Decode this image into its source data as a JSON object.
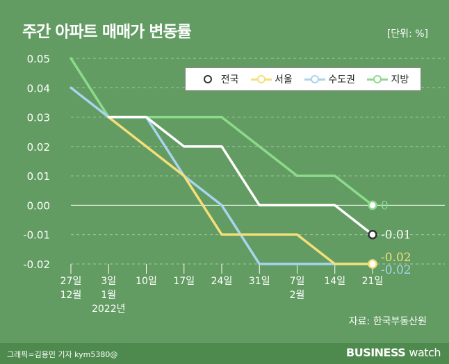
{
  "title": "주간 아파트 매매가 변동률",
  "unit": "[단위: %]",
  "source": "자료: 한국부동산원",
  "footer": {
    "credit": "그래픽=김용민 기자 kym5380@",
    "brand_bold": "BUSINESS",
    "brand_light": "watch"
  },
  "colors": {
    "background": "#629C62",
    "전국": "#FFFFFF",
    "서울": "#F5DF7A",
    "수도권": "#A8D4EE",
    "지방": "#8CDA8C"
  },
  "chart_data": {
    "type": "line",
    "title": "주간 아파트 매매가 변동률",
    "unit": "[단위: %]",
    "ylim": [
      -0.02,
      0.05
    ],
    "yticks": [
      "0.05",
      "0.04",
      "0.03",
      "0.02",
      "0.01",
      "0.00",
      "-0.01",
      "-0.02"
    ],
    "categories": [
      {
        "line1": "27일",
        "line2": "12월",
        "line3": ""
      },
      {
        "line1": "3일",
        "line2": "1월",
        "line3": "2022년"
      },
      {
        "line1": "10일",
        "line2": "",
        "line3": ""
      },
      {
        "line1": "17일",
        "line2": "",
        "line3": ""
      },
      {
        "line1": "24일",
        "line2": "",
        "line3": ""
      },
      {
        "line1": "31일",
        "line2": "",
        "line3": ""
      },
      {
        "line1": "7일",
        "line2": "2월",
        "line3": ""
      },
      {
        "line1": "14일",
        "line2": "",
        "line3": ""
      },
      {
        "line1": "21일",
        "line2": "",
        "line3": ""
      }
    ],
    "series": [
      {
        "name": "지방",
        "values": [
          0.05,
          0.03,
          0.03,
          0.03,
          0.03,
          0.02,
          0.01,
          0.01,
          0.0
        ],
        "end_label": "0"
      },
      {
        "name": "수도권",
        "values": [
          0.04,
          0.03,
          0.03,
          0.01,
          0.0,
          -0.02,
          -0.02,
          -0.02,
          -0.02
        ],
        "end_label": "-0.02"
      },
      {
        "name": "서울",
        "values": [
          null,
          0.03,
          0.02,
          0.01,
          -0.01,
          -0.01,
          -0.01,
          -0.02,
          -0.02
        ],
        "end_label": "-0.02"
      },
      {
        "name": "전국",
        "values": [
          null,
          0.03,
          0.03,
          0.02,
          0.02,
          0.0,
          0.0,
          0.0,
          -0.01
        ],
        "end_label": "-0.01"
      }
    ],
    "legend": [
      "전국",
      "서울",
      "수도권",
      "지방"
    ],
    "grid": true
  }
}
